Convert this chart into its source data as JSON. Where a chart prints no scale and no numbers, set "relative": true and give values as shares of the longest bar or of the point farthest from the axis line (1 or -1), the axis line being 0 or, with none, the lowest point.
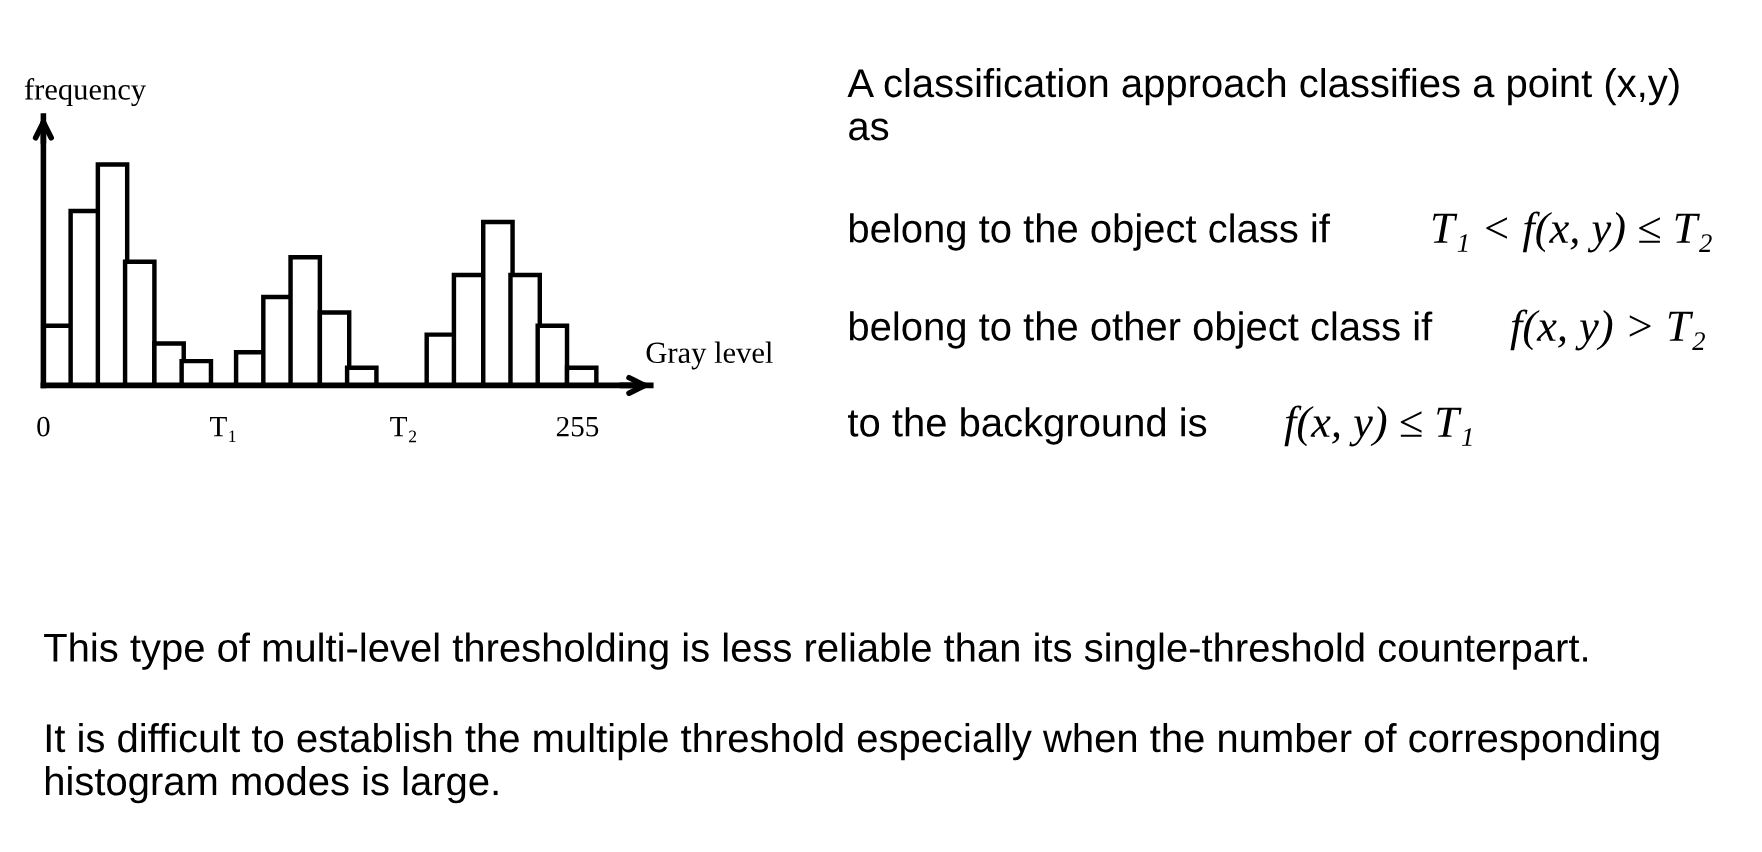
{
  "chart_data": {
    "type": "bar",
    "relative": true,
    "x": [
      7,
      20,
      33,
      46,
      60,
      73,
      99,
      112,
      125,
      139,
      152,
      190,
      203,
      217,
      230,
      243,
      257
    ],
    "values": [
      0.27,
      0.79,
      1,
      0.56,
      0.19,
      0.11,
      0.15,
      0.4,
      0.58,
      0.33,
      0.08,
      0.23,
      0.5,
      0.74,
      0.5,
      0.27,
      0.08
    ],
    "color": "#ffffff",
    "xlim": [
      0,
      290
    ],
    "xticks": [
      0,
      {
        "value": 86,
        "label": "T₁"
      },
      {
        "value": 172,
        "label": "T₂"
      },
      255
    ],
    "tick_labels": "x",
    "xlabel": "Gray level",
    "ylabel": "frequency",
    "annotations": [
      "A classification approach classifies a point (x,y) as",
      "belong to the object class if",
      "T₁ < f(x, y) ≤ T₂",
      "belong to the other object class if",
      "f(x, y) > T₂",
      "to the background is",
      "f(x, y) ≤ T₁",
      "This type of multi-level thresholding is less reliable than its single-threshold counterpart.",
      "It is difficult to establish the multiple threshold especially when the number of corresponding histogram modes is large."
    ]
  }
}
